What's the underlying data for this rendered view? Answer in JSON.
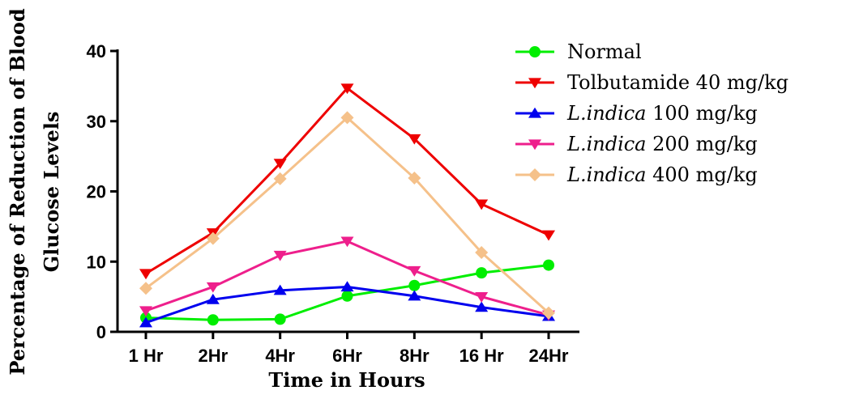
{
  "chart_data": {
    "type": "line",
    "title": "",
    "xlabel": "Time in Hours",
    "ylabel": [
      "Percentage of Reduction of Blood",
      "Glucose Levels"
    ],
    "categories": [
      "1 Hr",
      "2Hr",
      "4Hr",
      "6Hr",
      "8Hr",
      "16 Hr",
      "24Hr"
    ],
    "ylim": [
      0,
      40
    ],
    "yticks": [
      0,
      10,
      20,
      30,
      40
    ],
    "grid": false,
    "legend_position": "top-right",
    "series": [
      {
        "name": "Normal",
        "name_italic": "",
        "name_rest": "Normal",
        "color": "#00ee00",
        "marker": "circle",
        "values": [
          2.0,
          1.7,
          1.8,
          5.1,
          6.6,
          8.4,
          9.5
        ]
      },
      {
        "name": "Tolbutamide 40 mg/kg",
        "name_italic": "",
        "name_rest": "Tolbutamide 40 mg/kg",
        "color": "#ee0000",
        "marker": "triangle-down",
        "values": [
          8.3,
          14.1,
          24.0,
          34.7,
          27.5,
          18.2,
          13.8
        ]
      },
      {
        "name": "L.indica 100 mg/kg",
        "name_italic": "L.indica",
        "name_rest": " 100 mg/kg",
        "color": "#0000ee",
        "marker": "triangle-up",
        "values": [
          1.3,
          4.6,
          5.9,
          6.4,
          5.1,
          3.5,
          2.2
        ]
      },
      {
        "name": "L.indica 200 mg/kg",
        "name_italic": "L.indica",
        "name_rest": " 200 mg/kg",
        "color": "#ee1f8c",
        "marker": "triangle-down",
        "values": [
          3.0,
          6.4,
          10.9,
          12.9,
          8.7,
          5.0,
          2.4
        ]
      },
      {
        "name": "L.indica 400 mg/kg",
        "name_italic": "L.indica",
        "name_rest": " 400 mg/kg",
        "color": "#f5c18a",
        "marker": "diamond",
        "values": [
          6.2,
          13.3,
          21.8,
          30.5,
          21.9,
          11.3,
          2.7
        ]
      }
    ]
  }
}
